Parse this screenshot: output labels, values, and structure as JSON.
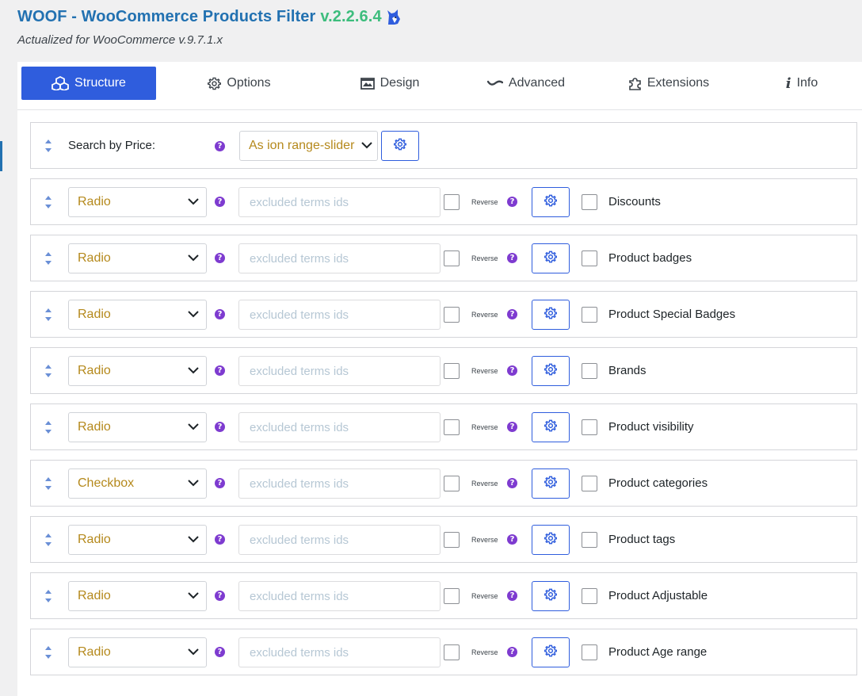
{
  "header": {
    "title": "WOOF - WooCommerce Products Filter",
    "version": "v.2.2.6.4",
    "subtitle": "Actualized for WooCommerce v.9.7.1.x"
  },
  "tabs": [
    {
      "label": "Structure",
      "icon": "cubes-icon"
    },
    {
      "label": "Options",
      "icon": "gear-icon"
    },
    {
      "label": "Design",
      "icon": "image-icon"
    },
    {
      "label": "Advanced",
      "icon": "wave-icon"
    },
    {
      "label": "Extensions",
      "icon": "puzzle-icon"
    },
    {
      "label": "Info",
      "icon": "info-icon"
    }
  ],
  "price_row": {
    "label": "Search by Price:",
    "select_value": "As ion range-slider"
  },
  "taxonomy_rows": [
    {
      "type": "Radio",
      "placeholder": "excluded terms ids",
      "reverse": "Reverse",
      "name": "Discounts"
    },
    {
      "type": "Radio",
      "placeholder": "excluded terms ids",
      "reverse": "Reverse",
      "name": "Product badges"
    },
    {
      "type": "Radio",
      "placeholder": "excluded terms ids",
      "reverse": "Reverse",
      "name": "Product Special Badges"
    },
    {
      "type": "Radio",
      "placeholder": "excluded terms ids",
      "reverse": "Reverse",
      "name": "Brands"
    },
    {
      "type": "Radio",
      "placeholder": "excluded terms ids",
      "reverse": "Reverse",
      "name": "Product visibility"
    },
    {
      "type": "Checkbox",
      "placeholder": "excluded terms ids",
      "reverse": "Reverse",
      "name": "Product categories"
    },
    {
      "type": "Radio",
      "placeholder": "excluded terms ids",
      "reverse": "Reverse",
      "name": "Product tags"
    },
    {
      "type": "Radio",
      "placeholder": "excluded terms ids",
      "reverse": "Reverse",
      "name": "Product Adjustable"
    },
    {
      "type": "Radio",
      "placeholder": "excluded terms ids",
      "reverse": "Reverse",
      "name": "Product Age range"
    }
  ],
  "colors": {
    "accent": "#2f5ddd",
    "title": "#2271b1",
    "version": "#3dbd7d",
    "help": "#7e3bd0",
    "select_text": "#b5891c"
  }
}
